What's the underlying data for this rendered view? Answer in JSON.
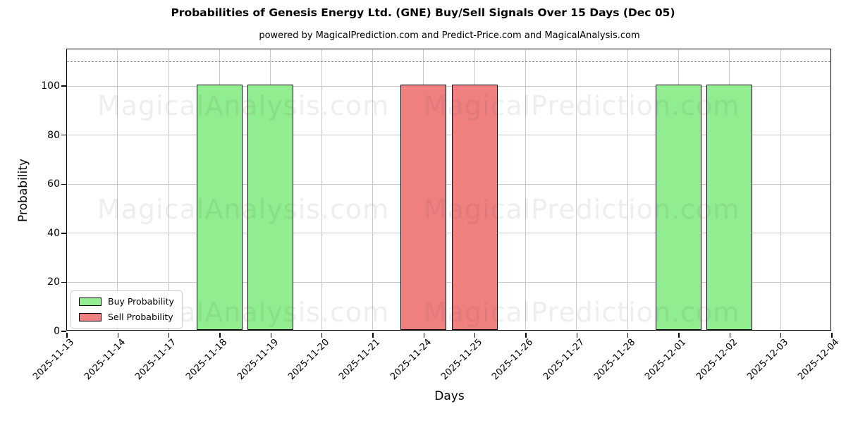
{
  "chart_data": {
    "type": "bar",
    "title": "Probabilities of Genesis Energy Ltd. (GNE) Buy/Sell Signals Over 15 Days (Dec 05)",
    "subtitle": "powered by MagicalPrediction.com and Predict-Price.com and MagicalAnalysis.com",
    "xlabel": "Days",
    "ylabel": "Probability",
    "categories": [
      "2025-11-13",
      "2025-11-14",
      "2025-11-17",
      "2025-11-18",
      "2025-11-19",
      "2025-11-20",
      "2025-11-21",
      "2025-11-24",
      "2025-11-25",
      "2025-11-26",
      "2025-11-27",
      "2025-11-28",
      "2025-12-01",
      "2025-12-02",
      "2025-12-03",
      "2025-12-04"
    ],
    "series": [
      {
        "name": "Buy Probability",
        "color": "#90ee90",
        "values": [
          0,
          0,
          0,
          100,
          100,
          0,
          0,
          0,
          0,
          0,
          0,
          0,
          100,
          100,
          0,
          0
        ]
      },
      {
        "name": "Sell Probability",
        "color": "#f08080",
        "values": [
          0,
          0,
          0,
          0,
          0,
          0,
          0,
          100,
          100,
          0,
          0,
          0,
          0,
          0,
          0,
          0
        ]
      }
    ],
    "ylim": [
      0,
      115
    ],
    "yticks": [
      0,
      20,
      40,
      60,
      80,
      100
    ],
    "dashed_line_y": 110,
    "grid": true,
    "legend_position": "lower left",
    "bar_width_fraction": 0.9,
    "bar_edge_color": "#000000",
    "grid_color": "#c8c8c8",
    "dashed_line_color": "#8a8a8a",
    "watermark_color": "rgba(80,70,70,0.09)",
    "watermarks": [
      "MagicalAnalysis.com",
      "MagicalPrediction.com"
    ]
  }
}
